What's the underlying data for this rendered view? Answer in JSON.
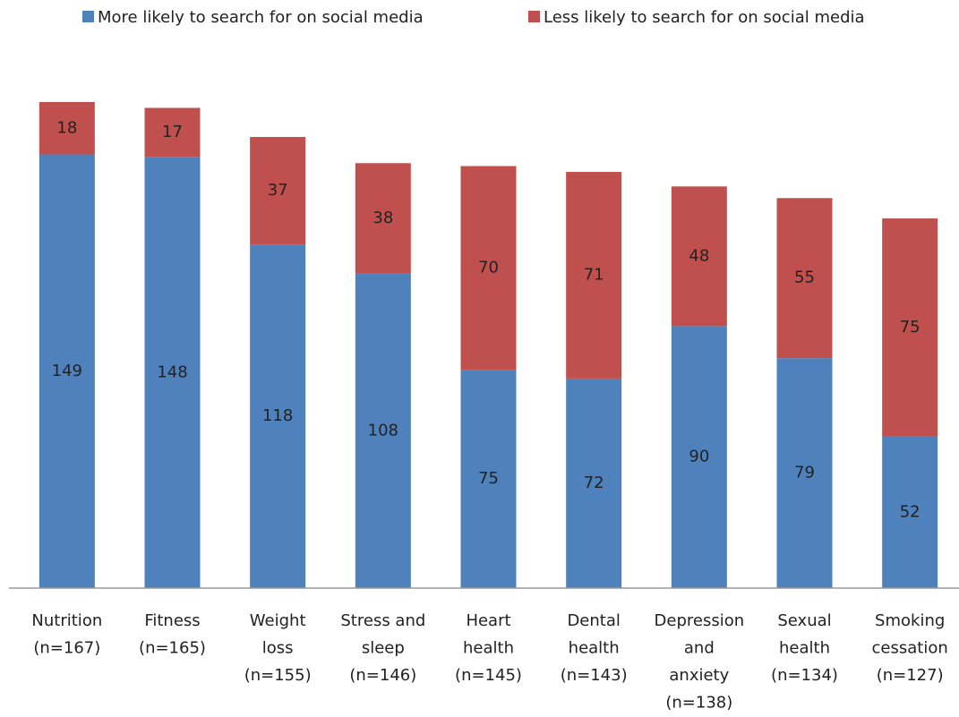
{
  "chart_data": {
    "type": "stacked-bar",
    "categories": [
      [
        "Nutrition",
        "(n=167)"
      ],
      [
        "Fitness",
        "(n=165)"
      ],
      [
        "Weight",
        "loss",
        "(n=155)"
      ],
      [
        "Stress and",
        "sleep",
        "(n=146)"
      ],
      [
        "Heart",
        "health",
        "(n=145)"
      ],
      [
        "Dental",
        "health",
        "(n=143)"
      ],
      [
        "Depression",
        "and",
        "anxiety",
        "(n=138)"
      ],
      [
        "Sexual",
        "health",
        "(n=134)"
      ],
      [
        "Smoking",
        "cessation",
        "(n=127)"
      ]
    ],
    "series": [
      {
        "name": "More likely to search for on social media",
        "color": "#4f81bd",
        "values": [
          149,
          148,
          118,
          108,
          75,
          72,
          90,
          79,
          52
        ]
      },
      {
        "name": "Less likely to search for on social media",
        "color": "#c0504d",
        "values": [
          18,
          17,
          37,
          38,
          70,
          71,
          48,
          55,
          75
        ]
      }
    ],
    "legend": "top"
  }
}
